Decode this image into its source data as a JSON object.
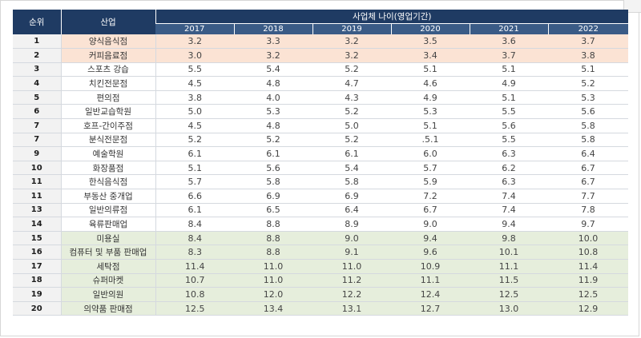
{
  "table": {
    "rank_header": "순위",
    "industry_header": "산업",
    "group_header": "사업체 나이(영업기간)",
    "years": [
      "2017",
      "2018",
      "2019",
      "2020",
      "2021",
      "2022"
    ],
    "rows": [
      {
        "rank": "1",
        "industry": "양식음식점",
        "values": [
          "3.2",
          "3.3",
          "3.2",
          "3.5",
          "3.6",
          "3.7"
        ],
        "highlight": "peach"
      },
      {
        "rank": "2",
        "industry": "커피음료점",
        "values": [
          "3.0",
          "3.2",
          "3.2",
          "3.4",
          "3.7",
          "3.8"
        ],
        "highlight": "peach"
      },
      {
        "rank": "3",
        "industry": "스포츠 강습",
        "values": [
          "5.5",
          "5.4",
          "5.2",
          "5.1",
          "5.1",
          "5.1"
        ],
        "highlight": ""
      },
      {
        "rank": "4",
        "industry": "치킨전문점",
        "values": [
          "4.5",
          "4.8",
          "4.7",
          "4.6",
          "4.9",
          "5.2"
        ],
        "highlight": ""
      },
      {
        "rank": "5",
        "industry": "편의점",
        "values": [
          "3.8",
          "4.0",
          "4.3",
          "4.9",
          "5.1",
          "5.3"
        ],
        "highlight": ""
      },
      {
        "rank": "6",
        "industry": "일반교습학원",
        "values": [
          "5.0",
          "5.3",
          "5.2",
          "5.3",
          "5.5",
          "5.6"
        ],
        "highlight": ""
      },
      {
        "rank": "7",
        "industry": "호프-간이주점",
        "values": [
          "4.5",
          "4.8",
          "5.0",
          "5.1",
          "5.6",
          "5.8"
        ],
        "highlight": ""
      },
      {
        "rank": "7",
        "industry": "분식전문점",
        "values": [
          "5.2",
          "5.2",
          "5.2",
          ".5.1",
          "5.5",
          "5.8"
        ],
        "highlight": ""
      },
      {
        "rank": "9",
        "industry": "예술학원",
        "values": [
          "6.1",
          "6.1",
          "6.1",
          "6.0",
          "6.3",
          "6.4"
        ],
        "highlight": ""
      },
      {
        "rank": "10",
        "industry": "화장품점",
        "values": [
          "5.1",
          "5.6",
          "5.4",
          "5.7",
          "6.2",
          "6.7"
        ],
        "highlight": ""
      },
      {
        "rank": "11",
        "industry": "한식음식점",
        "values": [
          "5.7",
          "5.8",
          "5.8",
          "5.9",
          "6.3",
          "6.7"
        ],
        "highlight": ""
      },
      {
        "rank": "11",
        "industry": "부동산 중개업",
        "values": [
          "6.6",
          "6.9",
          "6.9",
          "7.2",
          "7.4",
          "7.7"
        ],
        "highlight": ""
      },
      {
        "rank": "13",
        "industry": "일반의류점",
        "values": [
          "6.1",
          "6.5",
          "6.4",
          "6.7",
          "7.4",
          "7.8"
        ],
        "highlight": ""
      },
      {
        "rank": "14",
        "industry": "육류판매업",
        "values": [
          "8.4",
          "8.8",
          "8.9",
          "9.0",
          "9.4",
          "9.7"
        ],
        "highlight": ""
      },
      {
        "rank": "15",
        "industry": "미용실",
        "values": [
          "8.4",
          "8.8",
          "9.0",
          "9.4",
          "9.8",
          "10.0"
        ],
        "highlight": "green"
      },
      {
        "rank": "16",
        "industry": "컴퓨터 및 부품 판매업",
        "values": [
          "8.3",
          "8.8",
          "9.1",
          "9.6",
          "10.1",
          "10.8"
        ],
        "highlight": "green"
      },
      {
        "rank": "17",
        "industry": "세탁점",
        "values": [
          "11.4",
          "11.0",
          "11.0",
          "10.9",
          "11.1",
          "11.4"
        ],
        "highlight": "green"
      },
      {
        "rank": "18",
        "industry": "슈퍼마켓",
        "values": [
          "10.7",
          "11.0",
          "11.2",
          "11.1",
          "11.5",
          "11.9"
        ],
        "highlight": "green"
      },
      {
        "rank": "19",
        "industry": "일반의원",
        "values": [
          "10.8",
          "12.0",
          "12.2",
          "12.4",
          "12.5",
          "12.5"
        ],
        "highlight": "green"
      },
      {
        "rank": "20",
        "industry": "의약품 판매점",
        "values": [
          "12.5",
          "13.4",
          "13.1",
          "12.7",
          "13.0",
          "12.9"
        ],
        "highlight": "green"
      }
    ]
  },
  "colors": {
    "header_dark": "#1f3b63",
    "header_sub": "#3a5b86",
    "peach": "#fbe3d4",
    "green": "#e6eedc"
  }
}
